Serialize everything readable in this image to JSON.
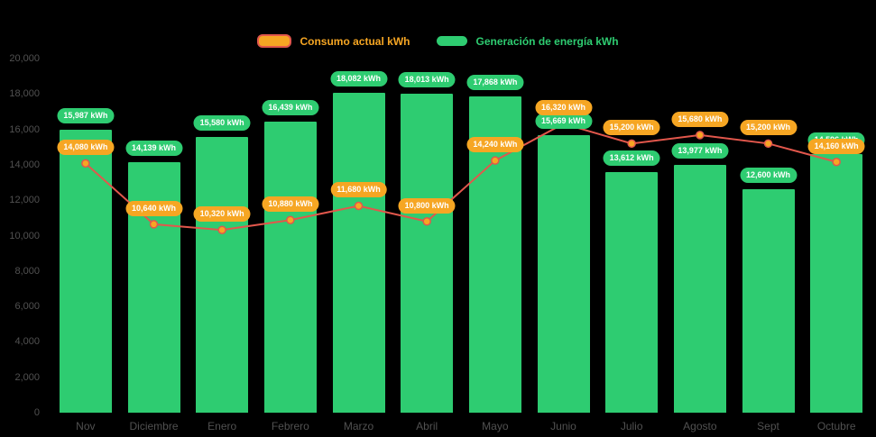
{
  "colors": {
    "background": "#000000",
    "bar": "#2ecc71",
    "line": "#e2574c",
    "marker": "#f6a623",
    "generation_label_bg": "#2ecc71",
    "consumption_label_bg": "#f6a623",
    "axis_text": "#515151",
    "pill_text": "#ffffff"
  },
  "legend": [
    {
      "label": "Consumo actual kWh",
      "swatch": "orange-with-red-border"
    },
    {
      "label": "Generación de energía kWh",
      "swatch": "green"
    }
  ],
  "chart_data": {
    "type": "bar+line",
    "categories": [
      "Nov",
      "Diciembre",
      "Enero",
      "Febrero",
      "Marzo",
      "Abril",
      "Mayo",
      "Junio",
      "Julio",
      "Agosto",
      "Sept",
      "Octubre"
    ],
    "series": [
      {
        "name": "Generación de energía kWh",
        "type": "bar",
        "color": "#2ecc71",
        "values": [
          15987,
          14139,
          15580,
          16439,
          18082,
          18013,
          17868,
          15669,
          13612,
          13977,
          12600,
          14596
        ],
        "labels": [
          "15,987 kWh",
          "14,139 kWh",
          "15,580 kWh",
          "16,439 kWh",
          "18,082 kWh",
          "18,013 kWh",
          "17,868 kWh",
          "15,669 kWh",
          "13,612 kWh",
          "13,977 kWh",
          "12,600 kWh",
          "14,596 kWh"
        ]
      },
      {
        "name": "Consumo actual kWh",
        "type": "line",
        "color": "#e2574c",
        "values": [
          14080,
          10640,
          10320,
          10880,
          11680,
          10800,
          14240,
          16320,
          15200,
          15680,
          15200,
          14160
        ],
        "labels": [
          "14,080 kWh",
          "10,640 kWh",
          "10,320 kWh",
          "10,880 kWh",
          "11,680 kWh",
          "10,800 kWh",
          "14,240 kWh",
          "16,320 kWh",
          "15,200 kWh",
          "15,680 kWh",
          "15,200 kWh",
          "14,160 kWh"
        ]
      }
    ],
    "ylim": [
      0,
      20000
    ],
    "yticks": [
      0,
      2000,
      4000,
      6000,
      8000,
      10000,
      12000,
      14000,
      16000,
      18000,
      20000
    ],
    "ytick_labels": [
      "0",
      "2,000",
      "4,000",
      "6,000",
      "8,000",
      "10,000",
      "12,000",
      "14,000",
      "16,000",
      "18,000",
      "20,000"
    ],
    "grid": false,
    "legend_position": "top-center"
  }
}
